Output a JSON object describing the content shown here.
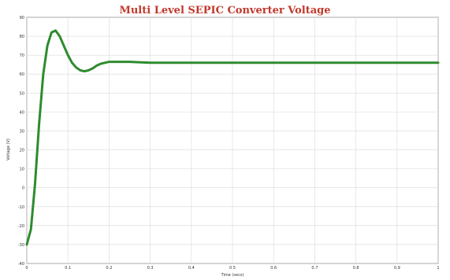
{
  "chart_data": {
    "type": "line",
    "title": "Multi Level SEPIC Converter Voltage",
    "xlabel": "Time (secs)",
    "ylabel": "Voltage (V)",
    "xlim": [
      0,
      1
    ],
    "ylim": [
      -40,
      90
    ],
    "x_ticks": [
      "0",
      "0.1",
      "0.2",
      "0.3",
      "0.4",
      "0.5",
      "0.6",
      "0.7",
      "0.8",
      "0.9",
      "1"
    ],
    "y_ticks": [
      "-40",
      "-30",
      "-20",
      "-10",
      "0",
      "10",
      "20",
      "30",
      "40",
      "50",
      "60",
      "70",
      "80",
      "90"
    ],
    "grid": true,
    "line_color": "#2e8b2e",
    "series": [
      {
        "x": [
          0,
          0.01,
          0.02,
          0.03,
          0.04,
          0.05,
          0.06,
          0.07,
          0.08,
          0.09,
          0.1,
          0.11,
          0.12,
          0.13,
          0.14,
          0.15,
          0.16,
          0.17,
          0.18,
          0.19,
          0.2,
          0.22,
          0.25,
          0.3,
          0.35,
          0.4,
          0.5,
          0.6,
          0.7,
          0.8,
          0.9,
          1.0
        ],
        "y": [
          -30,
          -22,
          2,
          34,
          60,
          75,
          82,
          83,
          80,
          75,
          70,
          66,
          63.5,
          62,
          61.5,
          62,
          63,
          64.5,
          65.5,
          66,
          66.5,
          66.5,
          66.5,
          66,
          66,
          66,
          66,
          66,
          66,
          66,
          66,
          66
        ]
      }
    ]
  }
}
